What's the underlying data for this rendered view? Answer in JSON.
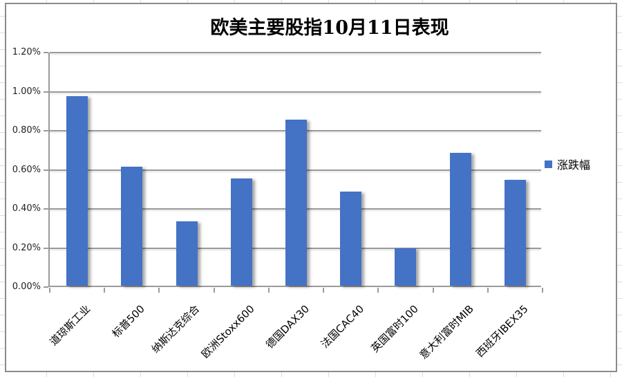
{
  "chart": {
    "title": "欧美主要股指10月11日表现",
    "legend": {
      "label": "涨跌幅",
      "color": "#4472C4",
      "position": "right"
    }
  },
  "chart_data": {
    "type": "bar",
    "title": "欧美主要股指10月11日表现",
    "categories": [
      "道琼斯工业",
      "标普500",
      "纳斯达克综合",
      "欧洲Stoxx600",
      "德国DAX30",
      "法国CAC40",
      "英国富时100",
      "意大利富时MIB",
      "西班牙IBEX35"
    ],
    "series": [
      {
        "name": "涨跌幅",
        "values": [
          0.97,
          0.61,
          0.33,
          0.55,
          0.85,
          0.48,
          0.19,
          0.68,
          0.54
        ]
      }
    ],
    "unit": "%",
    "xlabel": "",
    "ylabel": "",
    "ylim": [
      0,
      1.2
    ],
    "ytick_step": 0.2,
    "ytick_labels": [
      "0.00%",
      "0.20%",
      "0.40%",
      "0.60%",
      "0.80%",
      "1.00%",
      "1.20%"
    ],
    "grid": true,
    "legend_position": "right",
    "bar_color": "#4472C4"
  },
  "colors": {
    "bar": "#4472C4",
    "grid_axis": "#9a9a9a",
    "chart_border": "#8a8a8a",
    "spreadsheet_cell_line": "#dcdcdc",
    "text": "#000000"
  }
}
